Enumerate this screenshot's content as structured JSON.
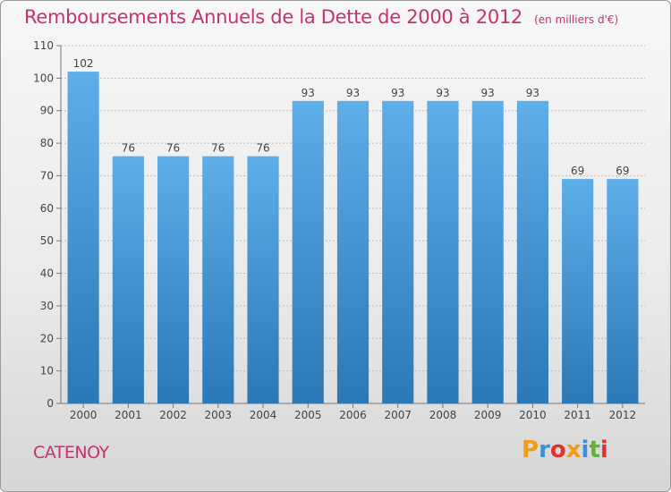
{
  "header": {
    "title": "Remboursements Annuels de la Dette de 2000 à 2012",
    "subtitle": "(en milliers d'€)"
  },
  "footer": {
    "city": "CATENOY",
    "brand": "Proxiti",
    "brand_colors": [
      "#f39c12",
      "#3a8fd6",
      "#e2332f",
      "#f39c12",
      "#3a8fd6",
      "#5bb531",
      "#e2332f"
    ]
  },
  "colors": {
    "accent": "#c8316e",
    "bar_top": "#5eaeea",
    "bar_bottom": "#2a78b6",
    "grid": "#bdbdbd"
  },
  "chart_data": {
    "type": "bar",
    "categories": [
      "2000",
      "2001",
      "2002",
      "2003",
      "2004",
      "2005",
      "2006",
      "2007",
      "2008",
      "2009",
      "2010",
      "2011",
      "2012"
    ],
    "values": [
      102,
      76,
      76,
      76,
      76,
      93,
      93,
      93,
      93,
      93,
      93,
      69,
      69
    ],
    "ylim": [
      0,
      110
    ],
    "yticks": [
      0,
      10,
      20,
      30,
      40,
      50,
      60,
      70,
      80,
      90,
      100,
      110
    ],
    "grid": true,
    "xlabel": "",
    "ylabel": ""
  }
}
